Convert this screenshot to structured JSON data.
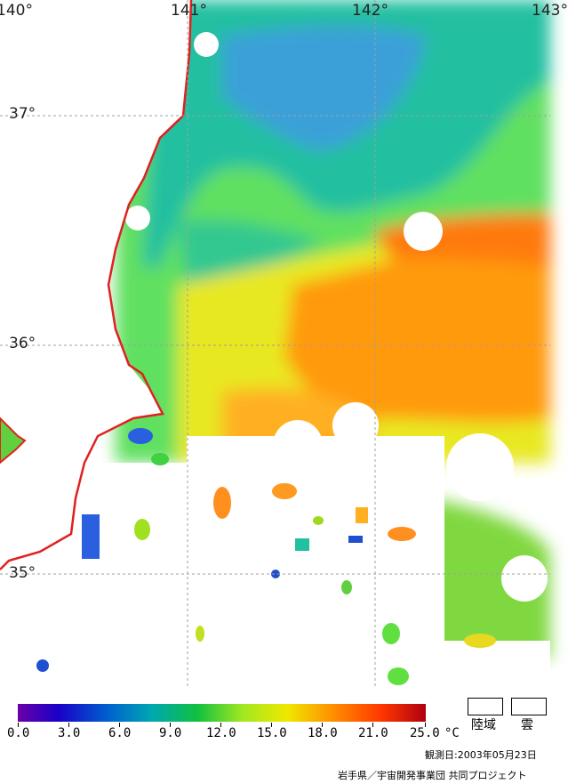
{
  "map": {
    "lon_labels": [
      "140°",
      "141°",
      "142°",
      "143°"
    ],
    "lat_labels": [
      "37°",
      "36°",
      "35°"
    ],
    "coastline_color": "#e02020",
    "cloud_color": "#ffffff"
  },
  "legend": {
    "ticks": [
      "0.0",
      "3.0",
      "6.0",
      "9.0",
      "12.0",
      "15.0",
      "18.0",
      "21.0",
      "25.0"
    ],
    "unit": "°C",
    "land_label": "陸域",
    "cloud_label": "雲",
    "date": "観測日:2003年05月23日",
    "credit": "岩手県／宇宙開発事業団 共同プロジェクト"
  }
}
